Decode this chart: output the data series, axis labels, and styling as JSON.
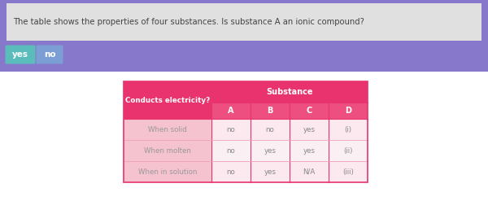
{
  "question_text": "The table shows the properties of four substances. Is substance A an ionic compound?",
  "btn_yes": "yes",
  "btn_no": "no",
  "header_left": "Conducts electricity?",
  "header_substance": "Substance",
  "col_headers": [
    "A",
    "B",
    "C",
    "D"
  ],
  "row_labels": [
    "When solid",
    "When molten",
    "When in solution"
  ],
  "table_data": [
    [
      "no",
      "no",
      "yes",
      "(i)"
    ],
    [
      "no",
      "yes",
      "yes",
      "(ii)"
    ],
    [
      "no",
      "yes",
      "N/A",
      "(iii)"
    ]
  ],
  "bg_purple_top": "#8878cc",
  "bg_purple_bottom": "#9b8dd4",
  "bg_white": "#ffffff",
  "header_pink_dark": "#e8336e",
  "header_pink_mid": "#ed5080",
  "row_label_bg": "#f5c2d0",
  "row_data_bg1": "#fce8ef",
  "row_data_bg2": "#faf0f4",
  "row_data_bg3": "#fce8ef",
  "text_white": "#ffffff",
  "text_dark": "#888888",
  "text_label": "#999999",
  "btn_yes_color": "#5bbcbc",
  "btn_no_color": "#7b9fd4",
  "question_bg": "#e0e0e0",
  "table_border": "#e8336e",
  "table_inner_border": "#f0a0b8"
}
